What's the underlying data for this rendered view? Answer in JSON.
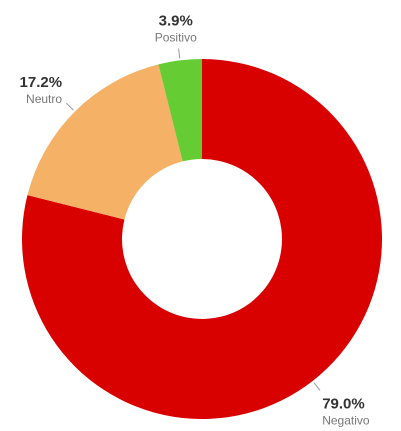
{
  "chart_data": {
    "type": "donut",
    "categories": [
      "Negativo",
      "Neutro",
      "Positivo"
    ],
    "values": [
      79.0,
      17.2,
      3.9
    ],
    "value_labels": [
      "79.0%",
      "17.2%",
      "3.9%"
    ],
    "colors": [
      "#d90000",
      "#f5b266",
      "#66cc33"
    ]
  }
}
